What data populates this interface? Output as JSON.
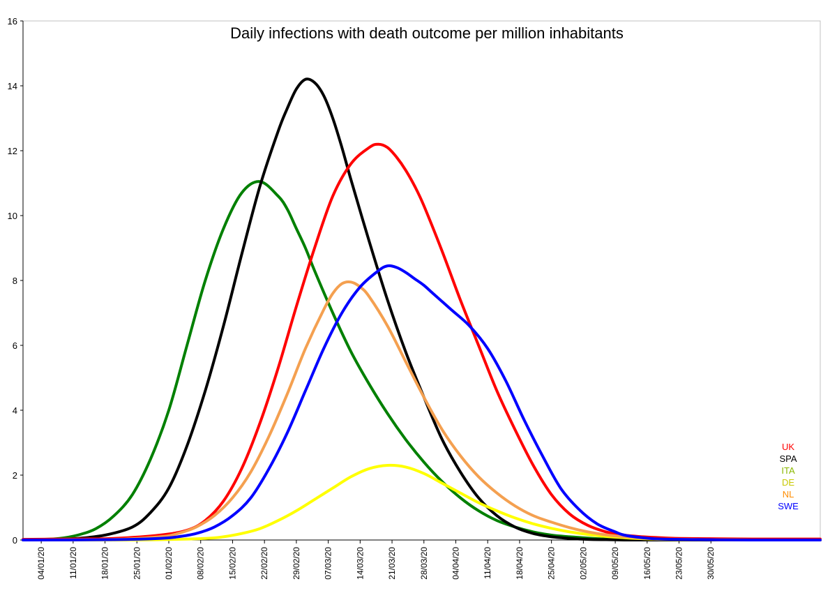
{
  "chart_data": {
    "type": "line",
    "title": "Daily infections with death outcome per million inhabitants",
    "xlabel": "",
    "ylabel": "",
    "ylim": [
      0,
      16
    ],
    "yticks": [
      "0",
      "2",
      "4",
      "6",
      "8",
      "10",
      "12",
      "14",
      "16"
    ],
    "x_start_day": 0,
    "x_end_day": 175,
    "xticks": [
      {
        "day": 4,
        "label": "04/01/20"
      },
      {
        "day": 11,
        "label": "11/01/20"
      },
      {
        "day": 18,
        "label": "18/01/20"
      },
      {
        "day": 25,
        "label": "25/01/20"
      },
      {
        "day": 32,
        "label": "01/02/20"
      },
      {
        "day": 39,
        "label": "08/02/20"
      },
      {
        "day": 46,
        "label": "15/02/20"
      },
      {
        "day": 53,
        "label": "22/02/20"
      },
      {
        "day": 60,
        "label": "29/02/20"
      },
      {
        "day": 67,
        "label": "07/03/20"
      },
      {
        "day": 74,
        "label": "14/03/20"
      },
      {
        "day": 81,
        "label": "21/03/20"
      },
      {
        "day": 88,
        "label": "28/03/20"
      },
      {
        "day": 95,
        "label": "04/04/20"
      },
      {
        "day": 102,
        "label": "11/04/20"
      },
      {
        "day": 109,
        "label": "18/04/20"
      },
      {
        "day": 116,
        "label": "25/04/20"
      },
      {
        "day": 123,
        "label": "02/05/20"
      },
      {
        "day": 130,
        "label": "09/05/20"
      },
      {
        "day": 137,
        "label": "16/05/20"
      },
      {
        "day": 144,
        "label": "23/05/20"
      },
      {
        "day": 151,
        "label": "30/05/20"
      }
    ],
    "series": [
      {
        "name": "ITA",
        "color": "#008000",
        "legend_color": "#8ab800",
        "x": [
          0,
          4,
          8,
          12,
          16,
          20,
          24,
          28,
          32,
          36,
          40,
          44,
          48,
          52,
          56,
          58,
          60,
          62,
          64,
          68,
          72,
          76,
          80,
          84,
          88,
          92,
          96,
          100,
          104,
          108,
          112,
          116,
          120,
          124,
          128,
          132,
          136,
          140,
          150,
          160,
          175
        ],
        "y": [
          0.01,
          0.02,
          0.05,
          0.15,
          0.35,
          0.75,
          1.4,
          2.5,
          4.0,
          6.0,
          8.0,
          9.6,
          10.7,
          11.05,
          10.6,
          10.2,
          9.6,
          9.0,
          8.3,
          7.0,
          5.8,
          4.8,
          3.9,
          3.1,
          2.4,
          1.8,
          1.3,
          0.9,
          0.6,
          0.4,
          0.25,
          0.15,
          0.1,
          0.06,
          0.03,
          0.02,
          0.01,
          0.01,
          0.0,
          0.0,
          0.0
        ]
      },
      {
        "name": "SPA",
        "color": "#000000",
        "legend_color": "#000000",
        "x": [
          0,
          6,
          12,
          18,
          24,
          28,
          32,
          36,
          40,
          44,
          48,
          52,
          56,
          58,
          60,
          62,
          64,
          66,
          68,
          70,
          72,
          76,
          80,
          84,
          88,
          92,
          96,
          100,
          104,
          108,
          112,
          116,
          120,
          124,
          128,
          132,
          136,
          140,
          150,
          160,
          175
        ],
        "y": [
          0.0,
          0.01,
          0.05,
          0.15,
          0.4,
          0.85,
          1.6,
          2.9,
          4.6,
          6.6,
          8.8,
          10.9,
          12.6,
          13.3,
          13.9,
          14.2,
          14.1,
          13.7,
          13.0,
          12.1,
          11.1,
          9.2,
          7.4,
          5.8,
          4.4,
          3.1,
          2.1,
          1.3,
          0.75,
          0.4,
          0.2,
          0.1,
          0.05,
          0.02,
          0.01,
          0.0,
          0.0,
          0.0,
          0.0,
          0.0,
          0.0
        ]
      },
      {
        "name": "UK",
        "color": "#ff0000",
        "legend_color": "#ff0000",
        "x": [
          0,
          10,
          20,
          30,
          36,
          40,
          44,
          48,
          52,
          56,
          60,
          64,
          68,
          72,
          76,
          78,
          80,
          82,
          84,
          86,
          88,
          92,
          96,
          100,
          104,
          108,
          112,
          116,
          120,
          124,
          128,
          132,
          136,
          140,
          144,
          150,
          160,
          175
        ],
        "y": [
          0.02,
          0.03,
          0.05,
          0.15,
          0.3,
          0.6,
          1.2,
          2.2,
          3.6,
          5.3,
          7.2,
          9.0,
          10.6,
          11.6,
          12.1,
          12.2,
          12.1,
          11.8,
          11.4,
          10.9,
          10.3,
          8.9,
          7.4,
          6.0,
          4.6,
          3.4,
          2.3,
          1.4,
          0.8,
          0.45,
          0.25,
          0.15,
          0.1,
          0.07,
          0.05,
          0.04,
          0.03,
          0.03
        ]
      },
      {
        "name": "DE",
        "color": "#ffff00",
        "legend_color": "#c8c800",
        "x": [
          0,
          20,
          30,
          40,
          44,
          48,
          52,
          56,
          60,
          64,
          68,
          72,
          76,
          80,
          84,
          88,
          92,
          96,
          100,
          104,
          108,
          112,
          116,
          120,
          124,
          128,
          132,
          136,
          140,
          150,
          160,
          175
        ],
        "y": [
          0.0,
          0.0,
          0.01,
          0.05,
          0.1,
          0.2,
          0.35,
          0.6,
          0.9,
          1.25,
          1.6,
          1.95,
          2.2,
          2.3,
          2.25,
          2.05,
          1.75,
          1.45,
          1.15,
          0.9,
          0.68,
          0.5,
          0.36,
          0.25,
          0.17,
          0.11,
          0.07,
          0.04,
          0.02,
          0.01,
          0.0,
          0.0
        ]
      },
      {
        "name": "NL",
        "color": "#f4a050",
        "legend_color": "#ff8c00",
        "x": [
          0,
          20,
          30,
          34,
          38,
          42,
          46,
          50,
          54,
          58,
          62,
          66,
          68,
          70,
          72,
          74,
          76,
          80,
          84,
          88,
          92,
          96,
          100,
          104,
          108,
          112,
          116,
          120,
          124,
          128,
          132,
          136,
          140,
          150,
          160,
          175
        ],
        "y": [
          0.0,
          0.02,
          0.1,
          0.2,
          0.4,
          0.75,
          1.3,
          2.1,
          3.2,
          4.5,
          5.9,
          7.1,
          7.6,
          7.9,
          7.95,
          7.8,
          7.5,
          6.6,
          5.5,
          4.4,
          3.4,
          2.6,
          1.95,
          1.45,
          1.05,
          0.75,
          0.55,
          0.38,
          0.25,
          0.16,
          0.1,
          0.06,
          0.03,
          0.01,
          0.0,
          0.0
        ]
      },
      {
        "name": "SWE",
        "color": "#0000ff",
        "legend_color": "#0000ff",
        "x": [
          0,
          20,
          30,
          34,
          38,
          42,
          46,
          50,
          54,
          58,
          62,
          66,
          70,
          74,
          78,
          80,
          82,
          84,
          86,
          88,
          90,
          94,
          98,
          102,
          106,
          110,
          114,
          118,
          122,
          126,
          130,
          132,
          136,
          140,
          150,
          160,
          175
        ],
        "y": [
          0.0,
          0.01,
          0.05,
          0.1,
          0.2,
          0.4,
          0.75,
          1.3,
          2.2,
          3.3,
          4.6,
          5.9,
          7.0,
          7.8,
          8.3,
          8.45,
          8.4,
          8.25,
          8.05,
          7.85,
          7.6,
          7.1,
          6.6,
          5.9,
          4.9,
          3.7,
          2.6,
          1.6,
          0.95,
          0.5,
          0.25,
          0.15,
          0.07,
          0.03,
          0.01,
          0.0,
          0.0
        ]
      }
    ],
    "legend": [
      "UK",
      "SPA",
      "ITA",
      "DE",
      "NL",
      "SWE"
    ],
    "legend_placement": "bottom-right"
  }
}
